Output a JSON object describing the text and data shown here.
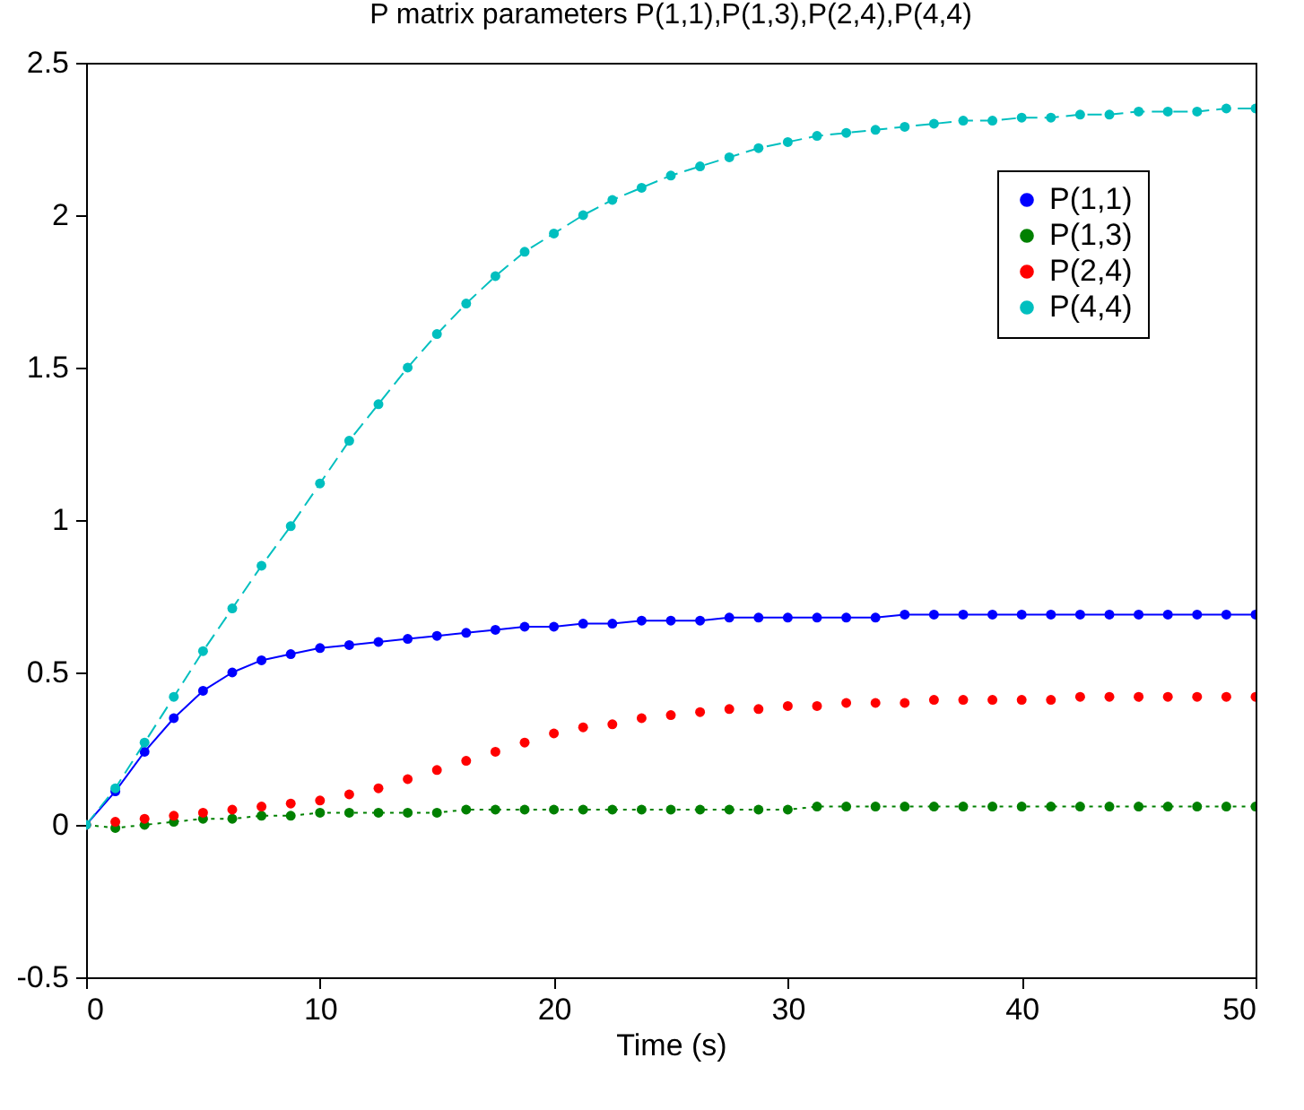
{
  "chart_data": {
    "type": "line",
    "title": "P matrix parameters P(1,1),P(1,3),P(2,4),P(4,4)",
    "xlabel": "Time (s)",
    "x": [
      0,
      1.25,
      2.5,
      3.75,
      5,
      6.25,
      7.5,
      8.75,
      10,
      11.25,
      12.5,
      13.75,
      15,
      16.25,
      17.5,
      18.75,
      20,
      21.25,
      22.5,
      23.75,
      25,
      26.25,
      27.5,
      28.75,
      30,
      31.25,
      32.5,
      33.75,
      35,
      36.25,
      37.5,
      38.75,
      40,
      41.25,
      42.5,
      43.75,
      45,
      46.25,
      47.5,
      48.75,
      50
    ],
    "series": [
      {
        "name": "P(1,1)",
        "color": "#0000ff",
        "line_style": "solid",
        "values": [
          0,
          0.11,
          0.24,
          0.35,
          0.44,
          0.5,
          0.54,
          0.56,
          0.58,
          0.59,
          0.6,
          0.61,
          0.62,
          0.63,
          0.64,
          0.65,
          0.65,
          0.66,
          0.66,
          0.67,
          0.67,
          0.67,
          0.68,
          0.68,
          0.68,
          0.68,
          0.68,
          0.68,
          0.69,
          0.69,
          0.69,
          0.69,
          0.69,
          0.69,
          0.69,
          0.69,
          0.69,
          0.69,
          0.69,
          0.69,
          0.69
        ]
      },
      {
        "name": "P(1,3)",
        "color": "#008000",
        "line_style": "dotted",
        "values": [
          0,
          -0.01,
          0,
          0.01,
          0.02,
          0.02,
          0.03,
          0.03,
          0.04,
          0.04,
          0.04,
          0.04,
          0.04,
          0.05,
          0.05,
          0.05,
          0.05,
          0.05,
          0.05,
          0.05,
          0.05,
          0.05,
          0.05,
          0.05,
          0.05,
          0.06,
          0.06,
          0.06,
          0.06,
          0.06,
          0.06,
          0.06,
          0.06,
          0.06,
          0.06,
          0.06,
          0.06,
          0.06,
          0.06,
          0.06,
          0.06
        ]
      },
      {
        "name": "P(2,4)",
        "color": "#ff0000",
        "type": "scatter",
        "values": [
          0,
          0.01,
          0.02,
          0.03,
          0.04,
          0.05,
          0.06,
          0.07,
          0.08,
          0.1,
          0.12,
          0.15,
          0.18,
          0.21,
          0.24,
          0.27,
          0.3,
          0.32,
          0.33,
          0.35,
          0.36,
          0.37,
          0.38,
          0.38,
          0.39,
          0.39,
          0.4,
          0.4,
          0.4,
          0.41,
          0.41,
          0.41,
          0.41,
          0.41,
          0.42,
          0.42,
          0.42,
          0.42,
          0.42,
          0.42,
          0.42
        ]
      },
      {
        "name": "P(4,4)",
        "color": "#00bfbf",
        "line_style": "dashed",
        "values": [
          0,
          0.12,
          0.27,
          0.42,
          0.57,
          0.71,
          0.85,
          0.98,
          1.12,
          1.26,
          1.38,
          1.5,
          1.61,
          1.71,
          1.8,
          1.88,
          1.94,
          2.0,
          2.05,
          2.09,
          2.13,
          2.16,
          2.19,
          2.22,
          2.24,
          2.26,
          2.27,
          2.28,
          2.29,
          2.3,
          2.31,
          2.31,
          2.32,
          2.32,
          2.33,
          2.33,
          2.34,
          2.34,
          2.34,
          2.35,
          2.35
        ]
      }
    ],
    "xlim": [
      0,
      50
    ],
    "xticks": [
      0,
      10,
      20,
      30,
      40,
      50
    ],
    "ylim": [
      -0.5,
      2.5
    ],
    "yticks": [
      -0.5,
      0,
      0.5,
      1,
      1.5,
      2,
      2.5
    ],
    "grid": false,
    "legend": "top right",
    "marker": "circle"
  }
}
